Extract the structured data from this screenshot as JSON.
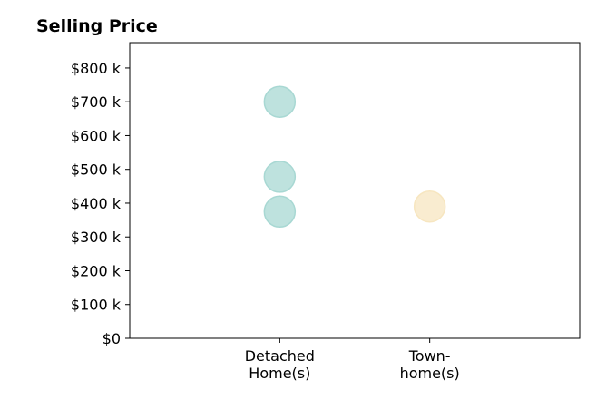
{
  "chart_data": {
    "type": "scatter",
    "title": "Selling Price",
    "xlabel": "",
    "ylabel": "",
    "categories": [
      [
        "Detached",
        "Home(s)"
      ],
      [
        "Town-",
        "home(s)"
      ]
    ],
    "y_ticks": [
      0,
      100000,
      200000,
      300000,
      400000,
      500000,
      600000,
      700000,
      800000
    ],
    "y_tick_labels": [
      "$0",
      "$100 k",
      "$200 k",
      "$300 k",
      "$400 k",
      "$500 k",
      "$600 k",
      "$700 k",
      "$800 k"
    ],
    "ylim": [
      0,
      875000
    ],
    "xlim": [
      -1,
      2
    ],
    "grid": false,
    "legend": "none",
    "series": [
      {
        "color": "#a8d8d3",
        "points": [
          {
            "x": 0,
            "y": 700000
          },
          {
            "x": 0,
            "y": 478000
          },
          {
            "x": 0,
            "y": 375000
          }
        ]
      },
      {
        "color": "#f7e6c0",
        "points": [
          {
            "x": 1,
            "y": 390000
          }
        ]
      }
    ]
  }
}
